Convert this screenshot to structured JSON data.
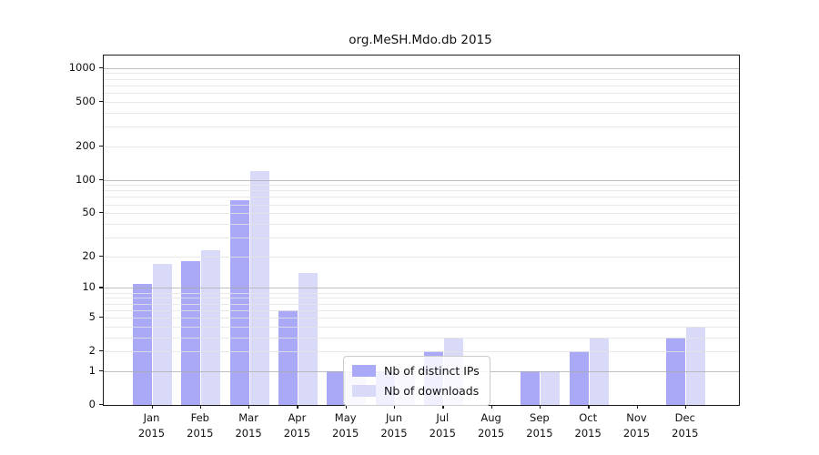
{
  "chart_data": {
    "type": "bar",
    "title": "org.MeSH.Mdo.db 2015",
    "categories": [
      "Jan",
      "Feb",
      "Mar",
      "Apr",
      "May",
      "Jun",
      "Jul",
      "Aug",
      "Sep",
      "Oct",
      "Nov",
      "Dec"
    ],
    "x_year": "2015",
    "series": [
      {
        "name": "Nb of distinct IPs",
        "color": "#a9a9f8",
        "values": [
          11,
          18,
          66,
          6,
          1,
          1,
          2,
          0,
          1,
          2,
          0,
          3
        ]
      },
      {
        "name": "Nb of downloads",
        "color": "#d9d9f8",
        "values": [
          17,
          23,
          120,
          14,
          1,
          1,
          3,
          0,
          1,
          3,
          0,
          4
        ]
      }
    ],
    "yscale": "log1p",
    "yticks": [
      0,
      1,
      2,
      5,
      10,
      20,
      50,
      100,
      200,
      500,
      1000
    ],
    "ylim": [
      0,
      1290
    ],
    "grid": "on",
    "legend_position": "lower center-left inside plot",
    "colors": {
      "major_grid": "#ababab",
      "minor_grid": "#e4e4e4",
      "spine": "#1a1a1a",
      "background": "#ffffff"
    }
  }
}
